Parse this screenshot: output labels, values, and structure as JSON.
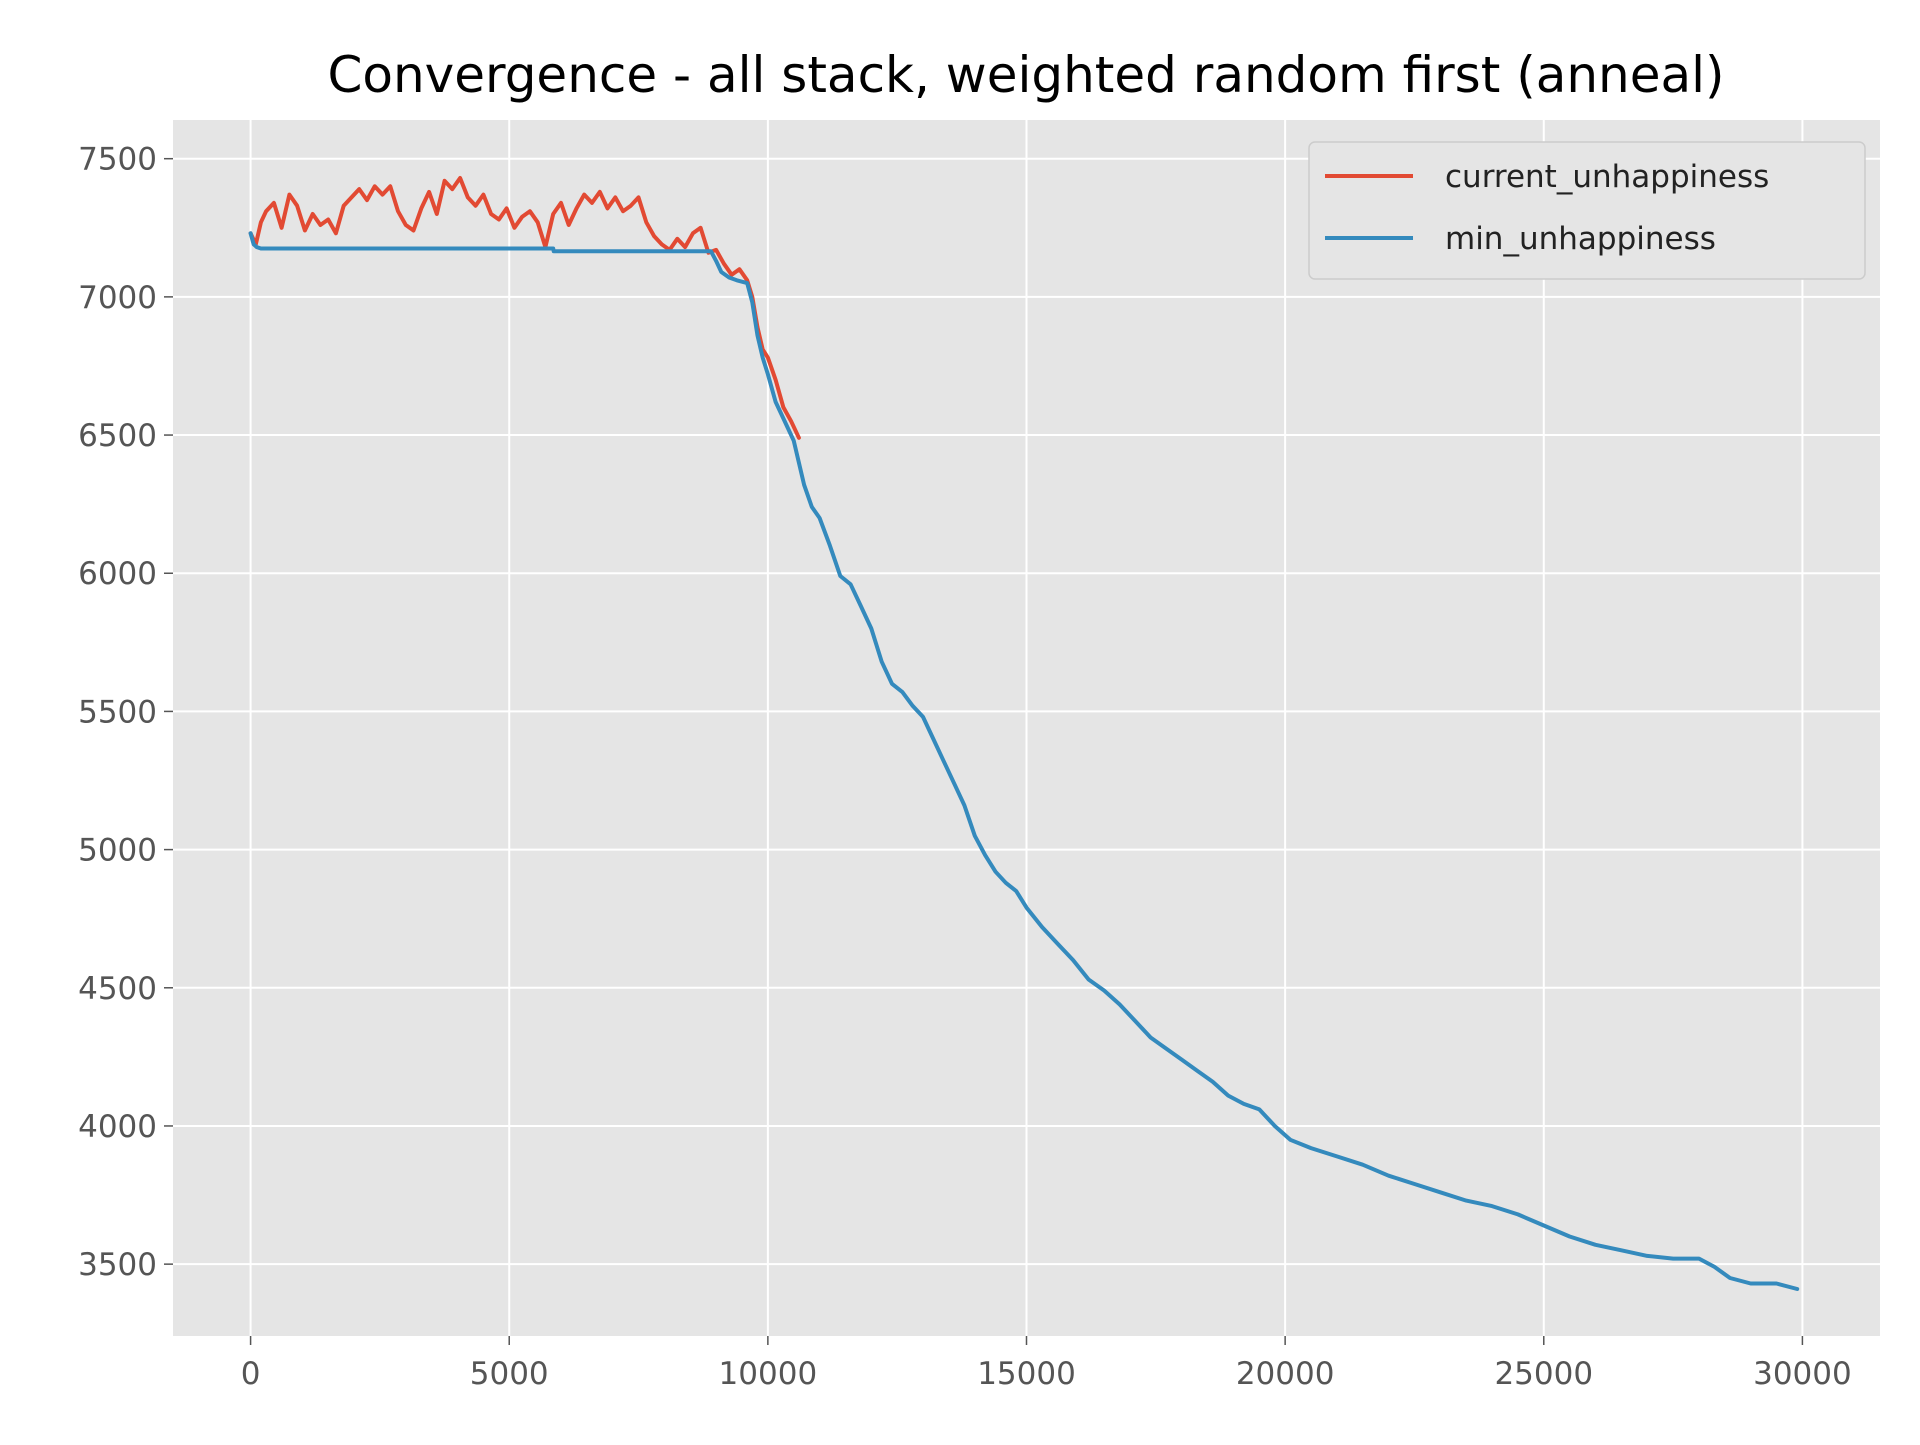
{
  "chart_data": {
    "type": "line",
    "title": "Convergence - all stack, weighted random first (anneal)",
    "xlabel": "",
    "ylabel": "",
    "xlim": [
      -1500,
      31500
    ],
    "ylim": [
      3240,
      7640
    ],
    "xticks": [
      0,
      5000,
      10000,
      15000,
      20000,
      25000,
      30000
    ],
    "xtick_labels": [
      "0",
      "5000",
      "10000",
      "15000",
      "20000",
      "25000",
      "30000"
    ],
    "yticks": [
      3500,
      4000,
      4500,
      5000,
      5500,
      6000,
      6500,
      7000,
      7500
    ],
    "ytick_labels": [
      "3500",
      "4000",
      "4500",
      "5000",
      "5500",
      "6000",
      "6500",
      "7000",
      "7500"
    ],
    "grid": true,
    "legend_position": "top-right",
    "series": [
      {
        "name": "current_unhappiness",
        "color": "#E24A33",
        "x": [
          0,
          100,
          200,
          300,
          450,
          600,
          750,
          900,
          1050,
          1200,
          1350,
          1500,
          1650,
          1800,
          1950,
          2100,
          2250,
          2400,
          2550,
          2700,
          2850,
          3000,
          3150,
          3300,
          3450,
          3600,
          3750,
          3900,
          4050,
          4200,
          4350,
          4500,
          4650,
          4800,
          4950,
          5100,
          5250,
          5400,
          5550,
          5700,
          5850,
          6000,
          6150,
          6300,
          6450,
          6600,
          6750,
          6900,
          7050,
          7200,
          7350,
          7500,
          7650,
          7800,
          7950,
          8100,
          8250,
          8400,
          8550,
          8700,
          8850,
          9000,
          9150,
          9300,
          9450,
          9600,
          9700,
          9800,
          9900,
          10000,
          10150,
          10300,
          10450,
          10600
        ],
        "y": [
          7230,
          7190,
          7270,
          7310,
          7340,
          7250,
          7370,
          7330,
          7240,
          7300,
          7260,
          7280,
          7230,
          7330,
          7360,
          7390,
          7350,
          7400,
          7370,
          7400,
          7310,
          7260,
          7240,
          7320,
          7380,
          7300,
          7420,
          7390,
          7430,
          7360,
          7330,
          7370,
          7300,
          7280,
          7320,
          7250,
          7290,
          7310,
          7270,
          7180,
          7300,
          7340,
          7260,
          7320,
          7370,
          7340,
          7380,
          7320,
          7360,
          7310,
          7330,
          7360,
          7270,
          7220,
          7190,
          7170,
          7210,
          7180,
          7230,
          7250,
          7160,
          7170,
          7120,
          7080,
          7100,
          7060,
          7000,
          6890,
          6810,
          6780,
          6700,
          6600,
          6550,
          6490
        ]
      },
      {
        "name": "min_unhappiness",
        "color": "#348ABD",
        "x": [
          0,
          60,
          120,
          200,
          5850,
          5860,
          8900,
          9000,
          9100,
          9250,
          9400,
          9600,
          9700,
          9800,
          9900,
          10000,
          10150,
          10300,
          10500,
          10700,
          10850,
          11000,
          11200,
          11400,
          11600,
          11800,
          12000,
          12200,
          12400,
          12600,
          12800,
          13000,
          13200,
          13400,
          13600,
          13800,
          14000,
          14200,
          14400,
          14600,
          14800,
          15000,
          15300,
          15600,
          15900,
          16200,
          16500,
          16800,
          17100,
          17400,
          17700,
          18000,
          18300,
          18600,
          18900,
          19200,
          19500,
          19800,
          20100,
          20500,
          21000,
          21500,
          22000,
          22500,
          23000,
          23500,
          24000,
          24500,
          25000,
          25500,
          26000,
          26500,
          27000,
          27500,
          28000,
          28300,
          28600,
          29000,
          29500,
          29900
        ],
        "y": [
          7230,
          7190,
          7180,
          7175,
          7175,
          7165,
          7165,
          7130,
          7090,
          7070,
          7060,
          7050,
          6980,
          6860,
          6780,
          6720,
          6620,
          6560,
          6480,
          6320,
          6240,
          6200,
          6100,
          5990,
          5960,
          5880,
          5800,
          5680,
          5600,
          5570,
          5520,
          5480,
          5400,
          5320,
          5240,
          5160,
          5050,
          4980,
          4920,
          4880,
          4850,
          4790,
          4720,
          4660,
          4600,
          4530,
          4490,
          4440,
          4380,
          4320,
          4280,
          4240,
          4200,
          4160,
          4110,
          4080,
          4060,
          4000,
          3950,
          3920,
          3890,
          3860,
          3820,
          3790,
          3760,
          3730,
          3710,
          3680,
          3640,
          3600,
          3570,
          3550,
          3530,
          3520,
          3520,
          3490,
          3450,
          3430,
          3430,
          3410
        ]
      }
    ]
  }
}
